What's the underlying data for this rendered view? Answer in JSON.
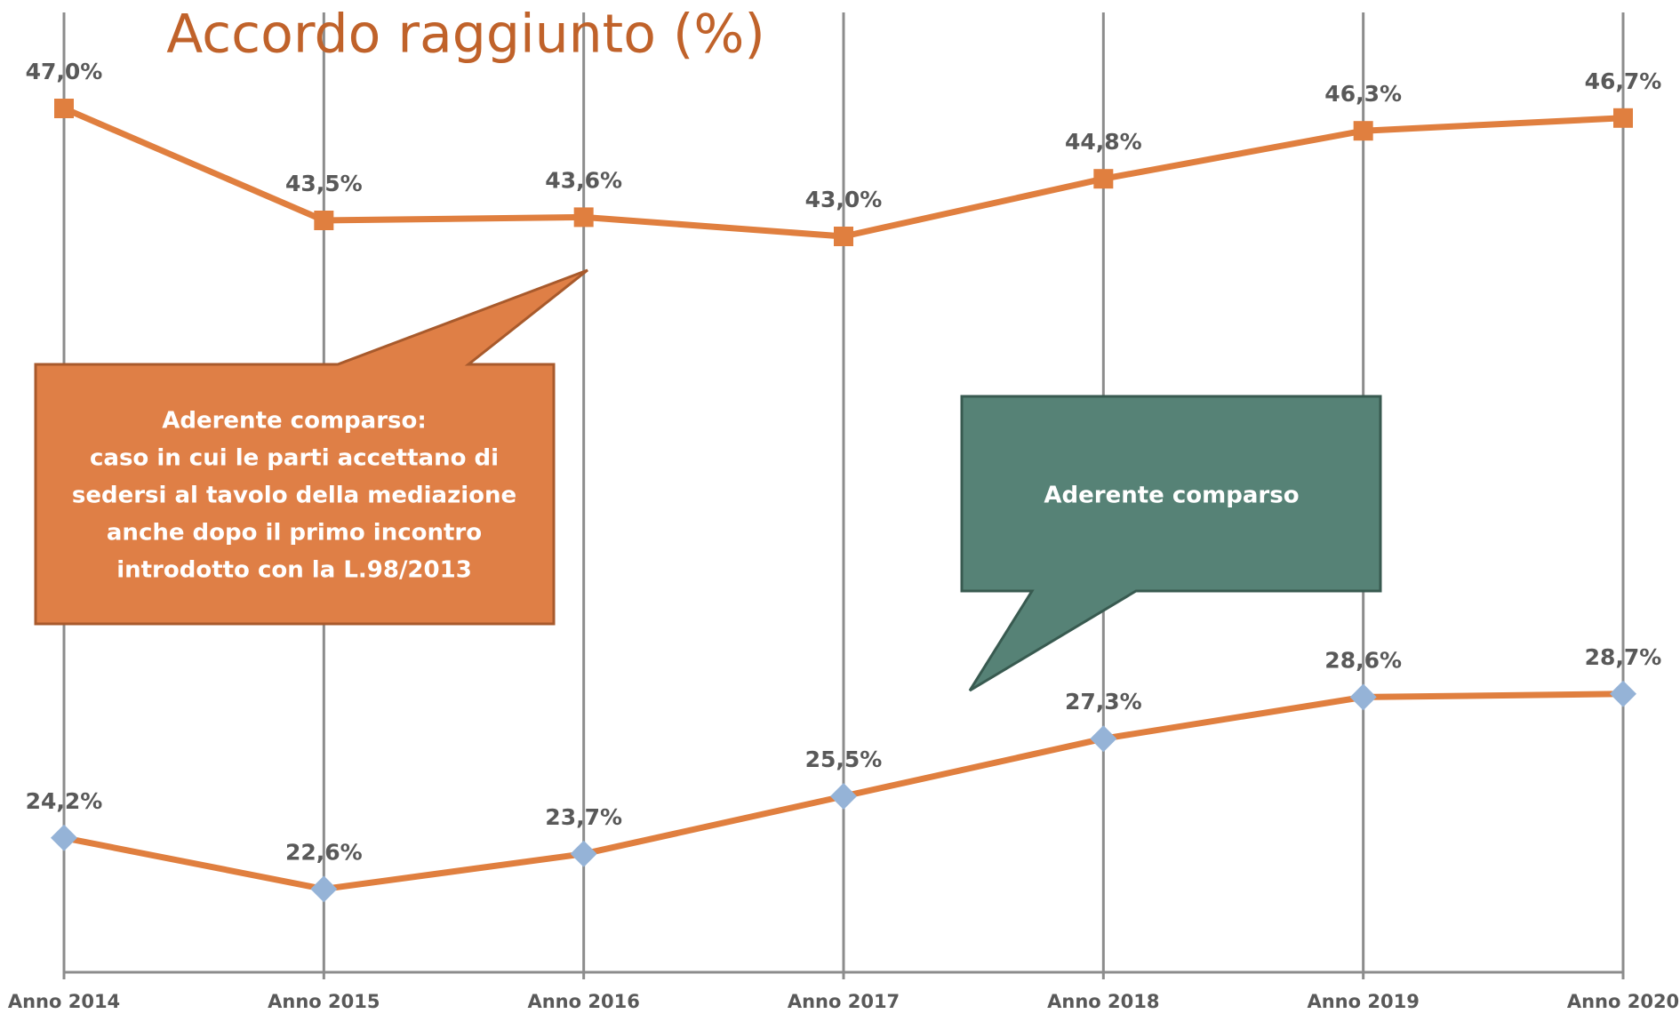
{
  "chart_data": {
    "type": "line",
    "title": "Accordo raggiunto (%)",
    "categories": [
      "Anno 2014",
      "Anno 2015",
      "Anno 2016",
      "Anno 2017",
      "Anno 2018",
      "Anno 2019",
      "Anno 2020"
    ],
    "series": [
      {
        "color": "#e07f3f",
        "marker": "square",
        "marker_color": "#e07f3f",
        "values": [
          47.0,
          43.5,
          43.6,
          43.0,
          44.8,
          46.3,
          46.7
        ],
        "value_labels": [
          "47,0%",
          "43,5%",
          "43,6%",
          "43,0%",
          "44,8%",
          "46,3%",
          "46,7%"
        ]
      },
      {
        "color": "#e07f3f",
        "marker": "diamond",
        "marker_color": "#95b3d7",
        "values": [
          24.2,
          22.6,
          23.7,
          25.5,
          27.3,
          28.6,
          28.7
        ],
        "value_labels": [
          "24,2%",
          "22,6%",
          "23,7%",
          "25,5%",
          "27,3%",
          "28,6%",
          "28,7%"
        ]
      }
    ],
    "ylim": [
      20,
      50
    ],
    "grid": "vertical",
    "annotations": [
      {
        "lines": [
          "Aderente comparso:",
          "caso in cui le parti accettano di",
          "sedersi al tavolo della mediazione",
          "anche dopo il primo incontro",
          "introdotto con la L.98/2013"
        ]
      },
      {
        "lines": [
          "Aderente comparso"
        ]
      }
    ]
  }
}
